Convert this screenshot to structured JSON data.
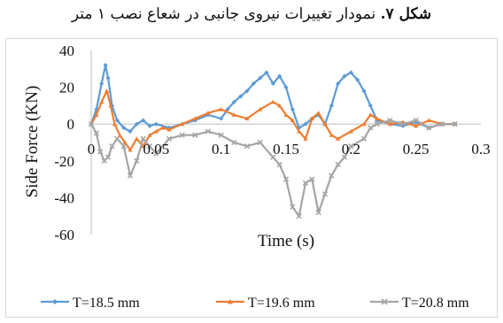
{
  "caption": {
    "figure_label": "شکل ۷.",
    "text": "نمودار تغییرات نیروی جانبی در شعاع نصب ۱ متر"
  },
  "chart_data": {
    "type": "line",
    "title": "",
    "xlabel": "Time (s)",
    "ylabel": "Side Force (KN)",
    "xlim": [
      0,
      0.3
    ],
    "ylim": [
      -60,
      40
    ],
    "x_ticks": [
      "0",
      "0.05",
      "0.1",
      "0.15",
      "0.2",
      "0.25",
      "0.3"
    ],
    "y_ticks": [
      "40",
      "20",
      "0",
      "-20",
      "-40",
      "-60"
    ],
    "grid": false,
    "legend_position": "bottom",
    "series": [
      {
        "name": "T=18.5 mm",
        "color": "#5b9bd5",
        "marker": "diamond",
        "x": [
          0,
          0.004,
          0.008,
          0.011,
          0.013,
          0.016,
          0.02,
          0.025,
          0.03,
          0.035,
          0.04,
          0.045,
          0.05,
          0.06,
          0.07,
          0.08,
          0.09,
          0.1,
          0.105,
          0.11,
          0.115,
          0.12,
          0.125,
          0.13,
          0.135,
          0.14,
          0.145,
          0.15,
          0.155,
          0.16,
          0.165,
          0.17,
          0.175,
          0.18,
          0.185,
          0.19,
          0.195,
          0.2,
          0.205,
          0.21,
          0.215,
          0.22,
          0.23,
          0.24,
          0.25,
          0.26,
          0.27,
          0.28
        ],
        "y": [
          0,
          8,
          22,
          32,
          25,
          10,
          2,
          -2,
          -4,
          0,
          2,
          -1,
          0,
          -2,
          0,
          2,
          5,
          3,
          8,
          12,
          15,
          18,
          22,
          25,
          28,
          22,
          26,
          20,
          8,
          -2,
          0,
          3,
          5,
          0,
          10,
          22,
          26,
          28,
          24,
          18,
          10,
          2,
          0,
          -1,
          1,
          -2,
          0,
          0
        ]
      },
      {
        "name": "T=19.6 mm",
        "color": "#ed7d31",
        "marker": "triangle",
        "x": [
          0,
          0.004,
          0.008,
          0.012,
          0.015,
          0.018,
          0.022,
          0.026,
          0.03,
          0.035,
          0.04,
          0.045,
          0.05,
          0.055,
          0.06,
          0.07,
          0.08,
          0.09,
          0.1,
          0.11,
          0.12,
          0.13,
          0.14,
          0.145,
          0.15,
          0.155,
          0.16,
          0.165,
          0.17,
          0.175,
          0.18,
          0.185,
          0.19,
          0.2,
          0.21,
          0.215,
          0.22,
          0.23,
          0.24,
          0.25,
          0.26,
          0.27,
          0.28
        ],
        "y": [
          0,
          5,
          12,
          18,
          10,
          0,
          -6,
          -10,
          -14,
          -8,
          -12,
          -6,
          -4,
          -2,
          -3,
          0,
          3,
          6,
          8,
          5,
          3,
          8,
          12,
          10,
          5,
          2,
          -4,
          -8,
          3,
          6,
          0,
          -6,
          -8,
          -4,
          0,
          5,
          3,
          0,
          1,
          -1,
          2,
          0,
          0
        ]
      },
      {
        "name": "T=20.8 mm",
        "color": "#a5a5a5",
        "marker": "x",
        "x": [
          0,
          0.004,
          0.007,
          0.01,
          0.013,
          0.016,
          0.02,
          0.025,
          0.03,
          0.035,
          0.04,
          0.045,
          0.05,
          0.06,
          0.07,
          0.08,
          0.09,
          0.1,
          0.11,
          0.12,
          0.13,
          0.14,
          0.145,
          0.15,
          0.155,
          0.16,
          0.165,
          0.17,
          0.175,
          0.18,
          0.185,
          0.19,
          0.195,
          0.2,
          0.21,
          0.215,
          0.22,
          0.23,
          0.24,
          0.25,
          0.26,
          0.27,
          0.28
        ],
        "y": [
          0,
          -5,
          -15,
          -20,
          -18,
          -12,
          -8,
          -12,
          -28,
          -20,
          -8,
          -12,
          -16,
          -8,
          -6,
          -6,
          -4,
          -6,
          -10,
          -12,
          -10,
          -18,
          -22,
          -30,
          -45,
          -50,
          -32,
          -30,
          -48,
          -38,
          -28,
          -22,
          -18,
          -12,
          -8,
          -2,
          0,
          2,
          0,
          2,
          -2,
          0,
          0
        ]
      }
    ]
  }
}
